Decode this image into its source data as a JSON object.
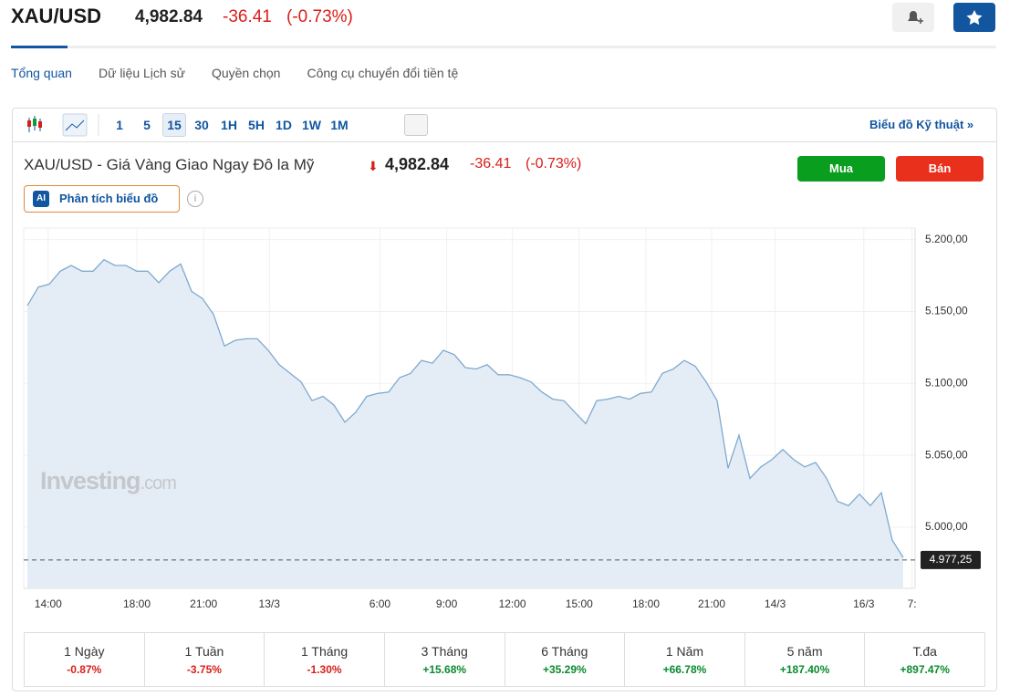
{
  "header": {
    "symbol": "XAU/USD",
    "price": "4,982.84",
    "change": "-36.41",
    "change_pct": "(-0.73%)"
  },
  "tabs": [
    "Tổng quan",
    "Dữ liệu Lịch sử",
    "Quyền chọn",
    "Công cụ chuyển đổi tiền tệ"
  ],
  "intervals": [
    "1",
    "5",
    "15",
    "30",
    "1H",
    "5H",
    "1D",
    "1W",
    "1M"
  ],
  "technical_link": "Biểu đồ Kỹ thuật",
  "quote": {
    "name": "XAU/USD - Giá Vàng Giao Ngay Đô la Mỹ",
    "price": "4,982.84",
    "change": "-36.41",
    "change_pct": "(-0.73%)",
    "buy": "Mua",
    "sell": "Bán"
  },
  "ai_button": {
    "badge": "AI",
    "label": "Phân tích biểu đồ"
  },
  "watermark": {
    "brand": "Investing",
    "suffix": ".com"
  },
  "chart_data": {
    "type": "line",
    "color": "#7fa9d0",
    "fill": "#e4edf6",
    "values": [
      5154,
      5167,
      5169,
      5178,
      5182,
      5178,
      5178,
      5186,
      5182,
      5182,
      5178,
      5178,
      5170,
      5178,
      5183,
      5164,
      5159,
      5148,
      5126,
      5130,
      5131,
      5131,
      5123,
      5113,
      5107,
      5101,
      5088,
      5091,
      5085,
      5073,
      5080,
      5091,
      5093,
      5094,
      5104,
      5107,
      5116,
      5114,
      5123,
      5120,
      5111,
      5110,
      5113,
      5106,
      5106,
      5104,
      5101,
      5094,
      5089,
      5088,
      5080,
      5072,
      5088,
      5089,
      5091,
      5089,
      5093,
      5094,
      5107,
      5110,
      5116,
      5112,
      5101,
      5088,
      5041,
      5064,
      5034,
      5042,
      5047,
      5054,
      5047,
      5042,
      5045,
      5034,
      5018,
      5015,
      5023,
      5015,
      5024,
      4991,
      4979
    ],
    "xlim": [
      0,
      80
    ],
    "xticks": [
      {
        "value": 1.9,
        "label": "14:00"
      },
      {
        "value": 10,
        "label": "18:00"
      },
      {
        "value": 16.1,
        "label": "21:00"
      },
      {
        "value": 22.1,
        "label": "13/3"
      },
      {
        "value": 32.2,
        "label": "6:00"
      },
      {
        "value": 38.3,
        "label": "9:00"
      },
      {
        "value": 44.3,
        "label": "12:00"
      },
      {
        "value": 50.4,
        "label": "15:00"
      },
      {
        "value": 56.5,
        "label": "18:00"
      },
      {
        "value": 62.5,
        "label": "21:00"
      },
      {
        "value": 68.3,
        "label": "14/3"
      },
      {
        "value": 76.4,
        "label": "16/3"
      },
      {
        "value": 80.8,
        "label": "7:"
      }
    ],
    "ylim": [
      4957.5,
      5208
    ],
    "yticks": [
      {
        "value": 5000,
        "label": "5.000,00"
      },
      {
        "value": 5050,
        "label": "5.050,00"
      },
      {
        "value": 5100,
        "label": "5.100,00"
      },
      {
        "value": 5150,
        "label": "5.150,00"
      },
      {
        "value": 5200,
        "label": "5.200,00"
      }
    ],
    "last_value": 4977.25,
    "last_label": "4.977,25",
    "grid": true
  },
  "performance": [
    {
      "period": "1 Ngày",
      "change": "-0.87%"
    },
    {
      "period": "1 Tuần",
      "change": "-3.75%"
    },
    {
      "period": "1 Tháng",
      "change": "-1.30%"
    },
    {
      "period": "3 Tháng",
      "change": "+15.68%"
    },
    {
      "period": "6 Tháng",
      "change": "+35.29%"
    },
    {
      "period": "1 Năm",
      "change": "+66.78%"
    },
    {
      "period": "5 năm",
      "change": "+187.40%"
    },
    {
      "period": "T.đa",
      "change": "+897.47%"
    }
  ]
}
